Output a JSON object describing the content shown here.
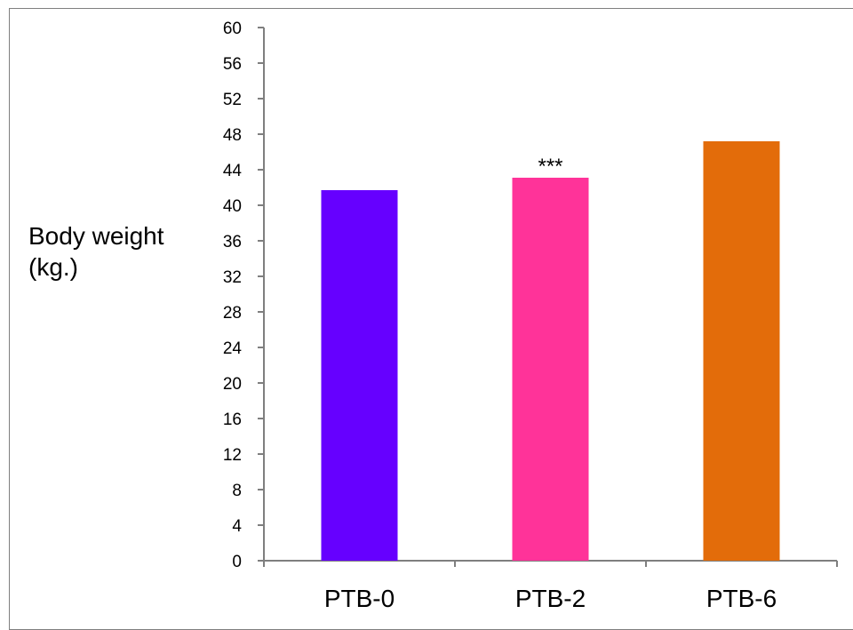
{
  "chart_data": {
    "type": "bar",
    "ylabel": "Body weight\n(kg.)",
    "xlabel": "",
    "title": "",
    "categories": [
      "PTB-0",
      "PTB-2",
      "PTB-6"
    ],
    "values": [
      41.7,
      43.1,
      47.2
    ],
    "colors": [
      "#6600ff",
      "#ff3399",
      "#e36c0a"
    ],
    "annotations": [
      "",
      "***",
      ""
    ],
    "ylim": [
      0,
      60
    ],
    "yticks": [
      0,
      4,
      8,
      12,
      16,
      20,
      24,
      28,
      32,
      36,
      40,
      44,
      48,
      52,
      56,
      60
    ],
    "grid": false,
    "legend": "none"
  }
}
